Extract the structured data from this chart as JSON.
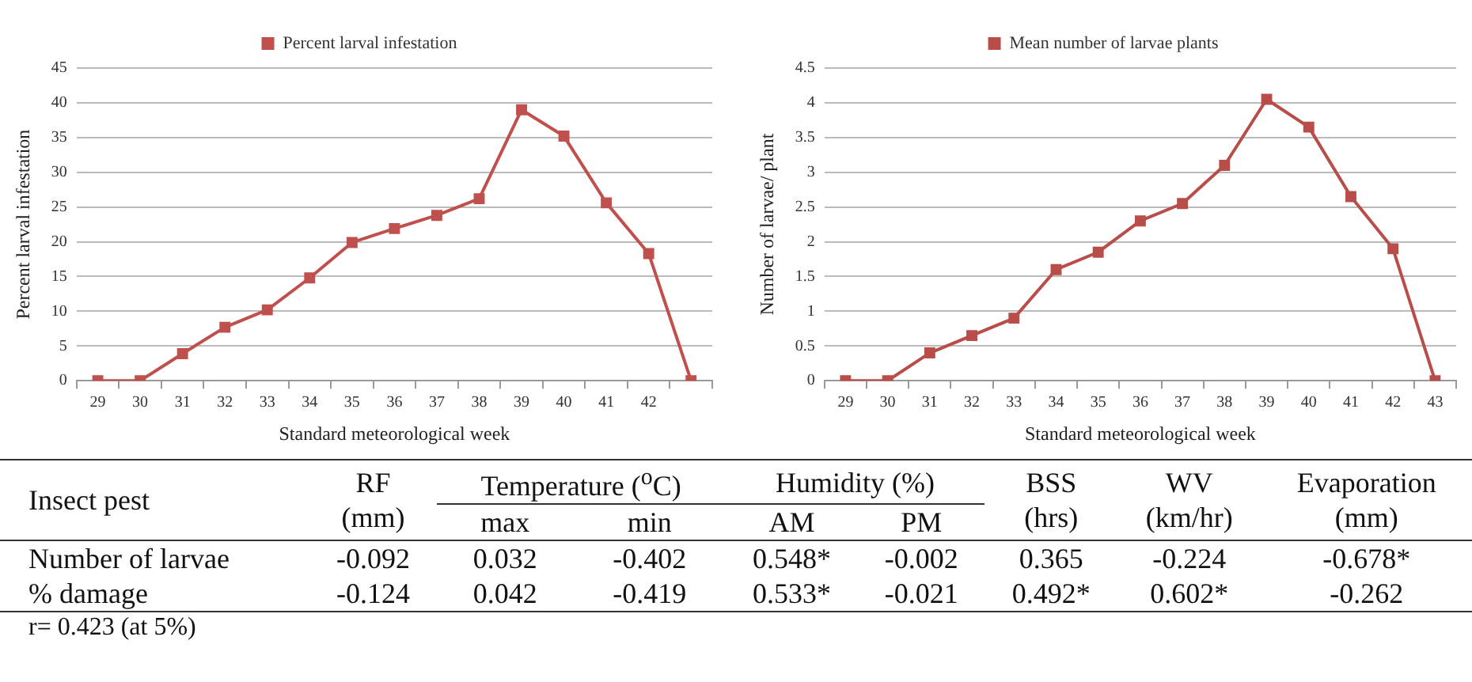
{
  "chart_data": [
    {
      "type": "line",
      "xlabel": "Standard meteorological week",
      "ylabel": "Percent larval infestation",
      "categories": [
        "29",
        "30",
        "31",
        "32",
        "33",
        "34",
        "35",
        "36",
        "37",
        "38",
        "39",
        "40",
        "41",
        "42",
        null
      ],
      "series": [
        {
          "name": "Percent larval infestation",
          "color": "#c0504d",
          "values": [
            0,
            0,
            3.9,
            7.7,
            10.2,
            14.8,
            19.9,
            21.9,
            23.8,
            26.2,
            39,
            35.2,
            25.6,
            18.3,
            0
          ]
        }
      ],
      "ylim": [
        0,
        45
      ],
      "yticks": [
        0,
        5,
        10,
        15,
        20,
        25,
        30,
        35,
        40,
        45
      ],
      "grid": "y",
      "legend": "top",
      "marker": "square"
    },
    {
      "type": "line",
      "xlabel": "Standard meteorological week",
      "ylabel": "Number of larvae/ plant",
      "categories": [
        "29",
        "30",
        "31",
        "32",
        "33",
        "34",
        "35",
        "36",
        "37",
        "38",
        "39",
        "40",
        "41",
        "42",
        "43"
      ],
      "series": [
        {
          "name": "Mean number of larvae plants",
          "color": "#b84d4a",
          "values": [
            0,
            0,
            0.4,
            0.65,
            0.9,
            1.6,
            1.85,
            2.3,
            2.55,
            3.1,
            4.05,
            3.65,
            2.65,
            1.9,
            0
          ]
        }
      ],
      "ylim": [
        0,
        4.5
      ],
      "yticks": [
        0,
        0.5,
        1,
        1.5,
        2,
        2.5,
        3,
        3.5,
        4,
        4.5
      ],
      "grid": "y",
      "legend": "top",
      "marker": "square"
    },
    {
      "type": "other",
      "annotations": [
        "Insect pest",
        "Temperature ($^{o}$C)",
        "Humidity (%)",
        "r=  0.423 (at 5%)"
      ],
      "categories": [
        "RF (mm)",
        "max",
        "min",
        "AM",
        "PM",
        "BSS (hrs)",
        "WV (km/hr)",
        "Evaporation (mm)"
      ],
      "y_categories": [
        "Number of larvae",
        "% damage"
      ],
      "data_labels": true,
      "cell_labels": [
        [
          "-0.092",
          "0.032",
          "-0.402",
          "0.548*",
          "-0.002",
          "0.365",
          "-0.224",
          "-0.678*"
        ],
        [
          "-0.124",
          "0.042",
          "-0.419",
          "0.533*",
          "-0.021",
          "0.492*",
          "0.602*",
          "-0.262"
        ]
      ]
    }
  ]
}
